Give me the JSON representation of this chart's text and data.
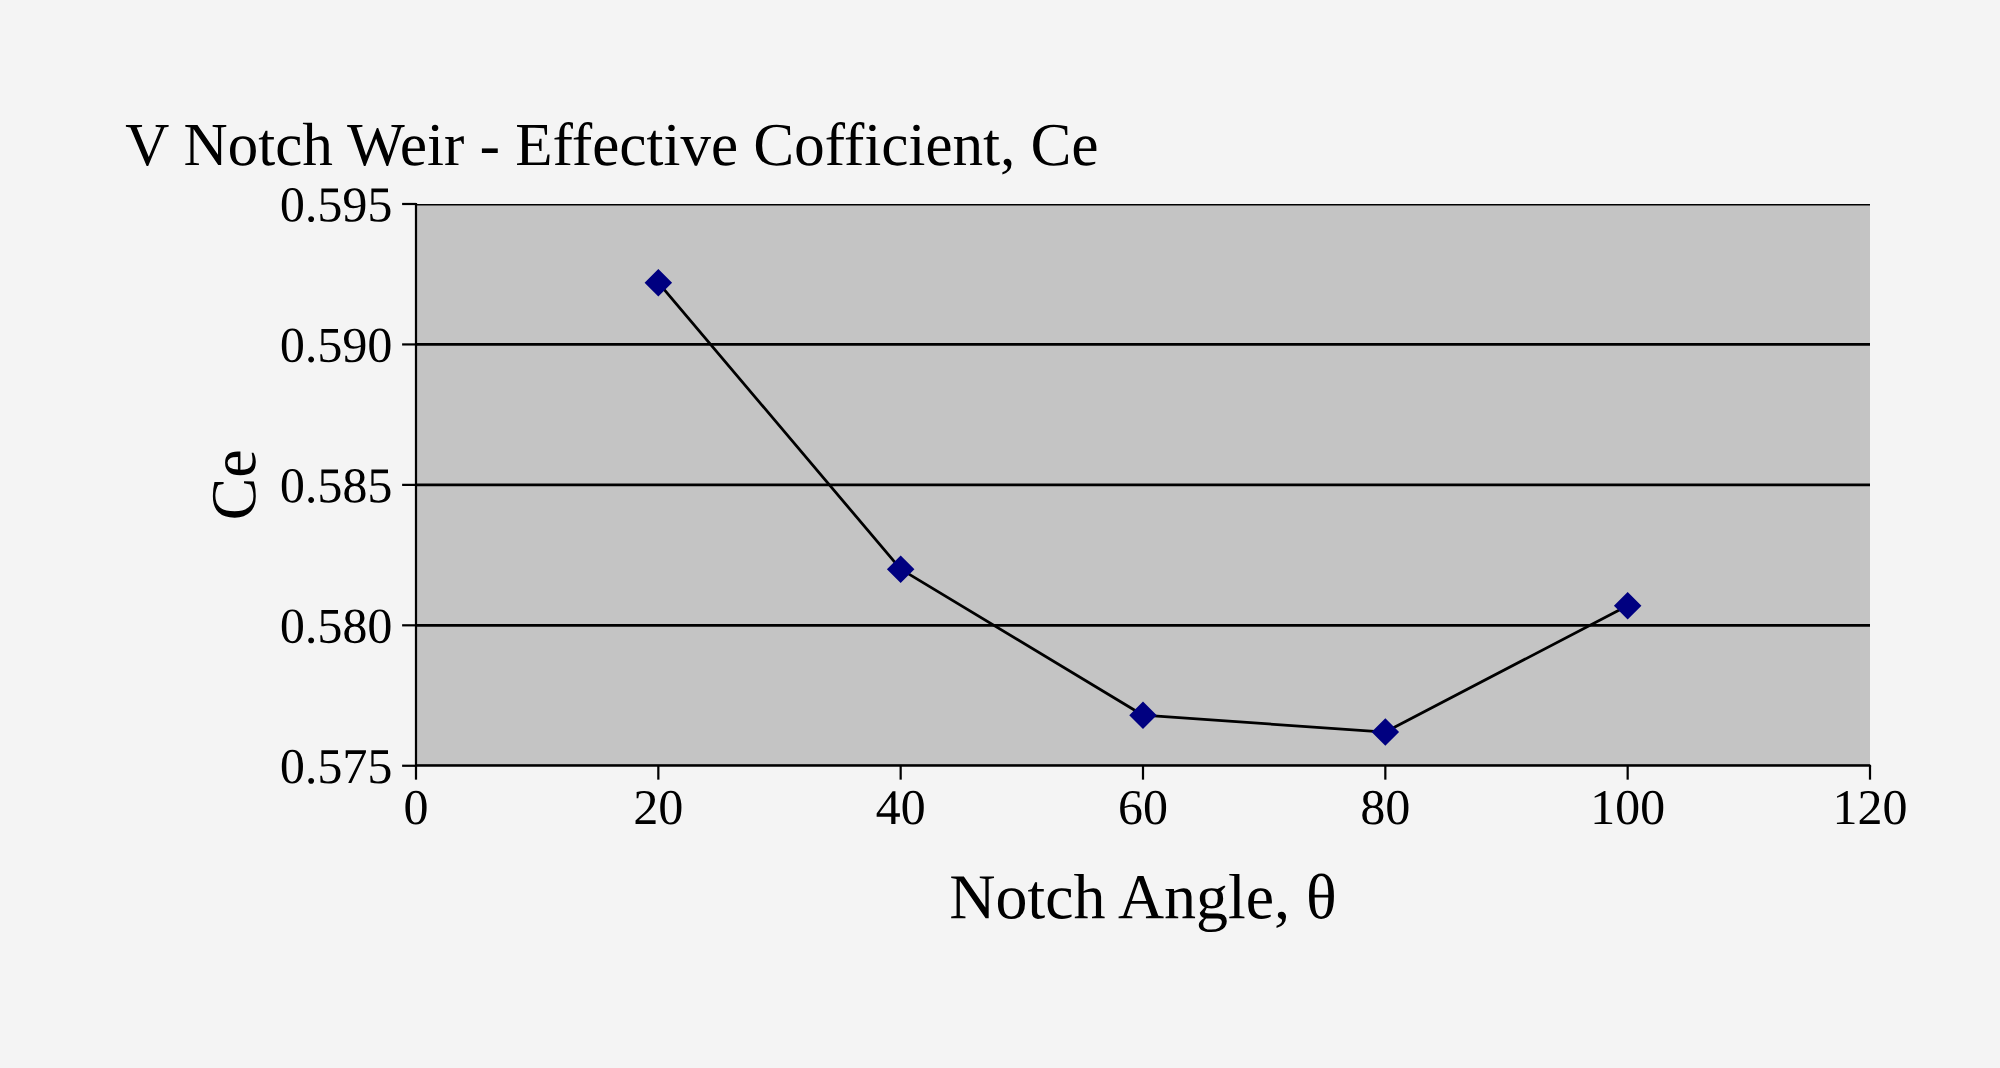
{
  "chart_data": {
    "type": "line",
    "title": "V Notch Weir - Effective Cofficient, Ce",
    "xlabel": "Notch Angle, θ",
    "ylabel": "Ce",
    "x": [
      20,
      40,
      60,
      80,
      100
    ],
    "series": [
      {
        "color": "#000080",
        "values": [
          0.5922,
          0.582,
          0.5768,
          0.5762,
          0.5807
        ]
      }
    ],
    "xlim": [
      0,
      120
    ],
    "xticks": [
      0,
      20,
      40,
      60,
      80,
      100,
      120
    ],
    "ylim": [
      0.575,
      0.595
    ],
    "yticks": [
      {
        "value": 0.575,
        "label": "0.575"
      },
      {
        "value": 0.58,
        "label": "0.580"
      },
      {
        "value": 0.585,
        "label": "0.585"
      },
      {
        "value": 0.59,
        "label": "0.590"
      },
      {
        "value": 0.595,
        "label": "0.595"
      }
    ],
    "grid": "y",
    "marker": "diamond",
    "line_style": "solid",
    "legend": false
  }
}
